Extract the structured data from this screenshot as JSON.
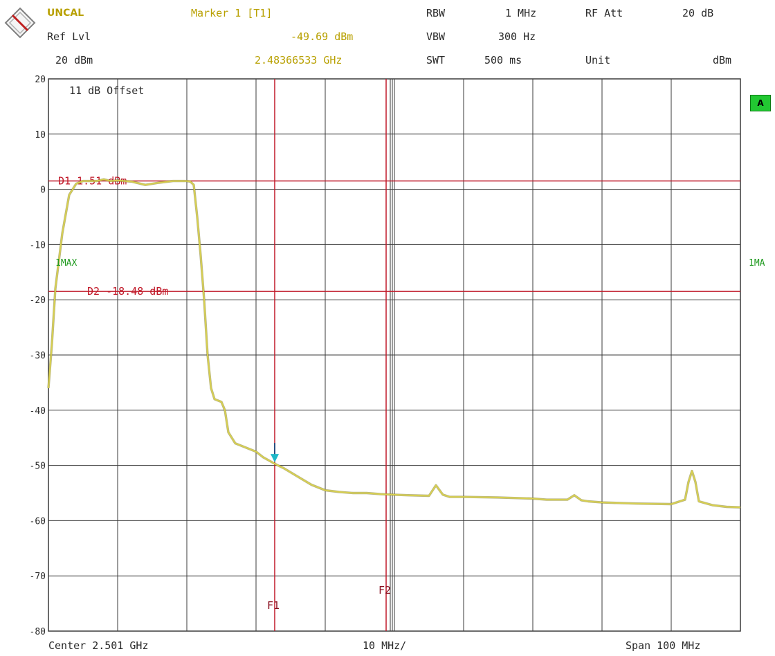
{
  "header": {
    "status": "UNCAL",
    "ref_label": "Ref Lvl",
    "ref_value": "20 dBm",
    "marker_title": "Marker 1 [T1]",
    "marker_level": "-49.69 dBm",
    "marker_freq": "2.48366533 GHz",
    "rbw_label": "RBW",
    "rbw_value": "1 MHz",
    "vbw_label": "VBW",
    "vbw_value": "300 Hz",
    "swt_label": "SWT",
    "swt_value": "500 ms",
    "att_label": "RF Att",
    "att_value": "20 dB",
    "unit_label": "Unit",
    "unit_value": "dBm"
  },
  "plot": {
    "offset_label": "11 dB Offset",
    "trace_label": "1MAX",
    "trace_label_right": "1MA",
    "badge": "A",
    "d1_label": "D1  1.51  dBm",
    "d2_label": "D2  -18.48  dBm",
    "f1_label": "F1",
    "f2_label": "F2"
  },
  "footer": {
    "center": "Center 2.501 GHz",
    "div": "10 MHz/",
    "span": "Span 100 MHz"
  },
  "colors": {
    "trace": "#d8d050",
    "grid": "#3a3a3a",
    "display_line": "#c01828",
    "marker": "#20b8c8"
  },
  "chart_data": {
    "type": "line",
    "x_unit": "MHz offset from center",
    "xlim": [
      -50,
      50
    ],
    "ylim": [
      -80,
      20
    ],
    "y_ticks": [
      "20",
      "10",
      "0",
      "-10",
      "-20",
      "-30",
      "-40",
      "-50",
      "-60",
      "-70",
      "-80"
    ],
    "grid": true,
    "display_lines": [
      {
        "name": "D1",
        "level": 1.51
      },
      {
        "name": "D2",
        "level": -18.48
      }
    ],
    "frequency_lines": [
      {
        "name": "F1",
        "x": -17.3
      },
      {
        "name": "F2",
        "x": -1.2
      }
    ],
    "marker": {
      "x": -17.3,
      "y": -49.69
    },
    "series": [
      {
        "x": [
          -50,
          -49.5,
          -49,
          -48,
          -47,
          -46,
          -45,
          -44,
          -43,
          -42,
          -41,
          -40,
          -38,
          -36,
          -34,
          -32,
          -31,
          -30,
          -29.5,
          -29,
          -28.5,
          -28,
          -27.5,
          -27,
          -26.5,
          -26,
          -25,
          -24.5,
          -24,
          -23,
          -22,
          -21,
          -20,
          -19,
          -18,
          -17.3,
          -16,
          -14,
          -12,
          -10,
          -8,
          -6,
          -4,
          -2,
          0,
          2,
          5,
          6,
          7,
          8,
          10,
          15,
          20,
          22,
          25,
          26,
          27,
          28,
          30,
          35,
          40,
          42,
          42.5,
          43,
          43.5,
          44,
          46,
          48,
          50
        ],
        "y": [
          -36,
          -28,
          -18,
          -8,
          -1,
          1,
          1.5,
          1.5,
          1.5,
          1.8,
          1.5,
          1.6,
          1.4,
          0.8,
          1.2,
          1.5,
          1.5,
          1.5,
          1.4,
          0.8,
          -5,
          -12,
          -20,
          -30,
          -36,
          -38,
          -38.5,
          -40,
          -44,
          -46,
          -46.5,
          -47,
          -47.5,
          -48.5,
          -49.2,
          -49.7,
          -50.5,
          -52,
          -53.5,
          -54.5,
          -54.8,
          -55,
          -55,
          -55.2,
          -55.3,
          -55.4,
          -55.5,
          -53.6,
          -55.3,
          -55.7,
          -55.7,
          -55.8,
          -56,
          -56.2,
          -56.2,
          -55.4,
          -56.3,
          -56.5,
          -56.7,
          -56.9,
          -57,
          -56.2,
          -53,
          -51,
          -53,
          -56.5,
          -57.2,
          -57.5,
          -57.6
        ]
      }
    ]
  }
}
